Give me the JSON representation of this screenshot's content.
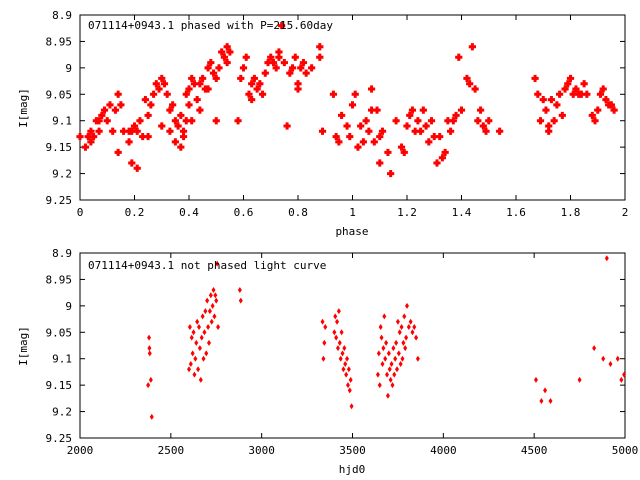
{
  "chart_data": [
    {
      "type": "scatter",
      "title": "071114+0943.1 phased with P=215.60day",
      "xlabel": "phase",
      "ylabel": "I[mag]",
      "xlim": [
        0,
        2
      ],
      "ylim": [
        8.9,
        9.25
      ],
      "y_inverted": true,
      "grid": false,
      "marker": "filled-cross",
      "color": "#ff0000",
      "xticks": [
        0,
        0.2,
        0.4,
        0.6,
        0.8,
        1,
        1.2,
        1.4,
        1.6,
        1.8,
        2
      ],
      "xtick_labels": [
        "0",
        "0.2",
        "0.4",
        "0.6",
        "0.8",
        "1",
        "1.2",
        "1.4",
        "1.6",
        "1.8",
        "2"
      ],
      "yticks": [
        8.9,
        8.95,
        9,
        9.05,
        9.1,
        9.15,
        9.2,
        9.25
      ],
      "ytick_labels": [
        "8.9",
        "8.95",
        "9",
        "9.05",
        "9.1",
        "9.15",
        "9.2",
        "9.25"
      ],
      "points": [
        [
          0.0,
          9.13
        ],
        [
          0.02,
          9.15
        ],
        [
          0.03,
          9.13
        ],
        [
          0.04,
          9.14
        ],
        [
          0.04,
          9.12
        ],
        [
          0.05,
          9.13
        ],
        [
          0.06,
          9.1
        ],
        [
          0.07,
          9.1
        ],
        [
          0.07,
          9.12
        ],
        [
          0.08,
          9.09
        ],
        [
          0.09,
          9.08
        ],
        [
          0.1,
          9.1
        ],
        [
          0.11,
          9.07
        ],
        [
          0.12,
          9.12
        ],
        [
          0.13,
          9.08
        ],
        [
          0.14,
          9.05
        ],
        [
          0.14,
          9.16
        ],
        [
          0.15,
          9.07
        ],
        [
          0.16,
          9.12
        ],
        [
          0.18,
          9.12
        ],
        [
          0.18,
          9.14
        ],
        [
          0.19,
          9.12
        ],
        [
          0.19,
          9.18
        ],
        [
          0.2,
          9.11
        ],
        [
          0.21,
          9.12
        ],
        [
          0.21,
          9.19
        ],
        [
          0.22,
          9.1
        ],
        [
          0.23,
          9.13
        ],
        [
          0.24,
          9.06
        ],
        [
          0.25,
          9.09
        ],
        [
          0.25,
          9.13
        ],
        [
          0.26,
          9.07
        ],
        [
          0.27,
          9.05
        ],
        [
          0.28,
          9.03
        ],
        [
          0.29,
          9.04
        ],
        [
          0.3,
          9.02
        ],
        [
          0.3,
          9.11
        ],
        [
          0.31,
          9.03
        ],
        [
          0.32,
          9.05
        ],
        [
          0.33,
          9.08
        ],
        [
          0.33,
          9.12
        ],
        [
          0.34,
          9.07
        ],
        [
          0.35,
          9.1
        ],
        [
          0.35,
          9.14
        ],
        [
          0.36,
          9.11
        ],
        [
          0.37,
          9.09
        ],
        [
          0.37,
          9.15
        ],
        [
          0.38,
          9.12
        ],
        [
          0.38,
          9.13
        ],
        [
          0.39,
          9.05
        ],
        [
          0.39,
          9.1
        ],
        [
          0.4,
          9.04
        ],
        [
          0.4,
          9.07
        ],
        [
          0.41,
          9.02
        ],
        [
          0.41,
          9.1
        ],
        [
          0.42,
          9.03
        ],
        [
          0.43,
          9.06
        ],
        [
          0.44,
          9.03
        ],
        [
          0.44,
          9.08
        ],
        [
          0.45,
          9.02
        ],
        [
          0.46,
          9.04
        ],
        [
          0.47,
          9.0
        ],
        [
          0.47,
          9.04
        ],
        [
          0.48,
          8.99
        ],
        [
          0.49,
          9.01
        ],
        [
          0.5,
          9.02
        ],
        [
          0.5,
          9.1
        ],
        [
          0.51,
          9.0
        ],
        [
          0.52,
          8.97
        ],
        [
          0.53,
          8.98
        ],
        [
          0.54,
          8.99
        ],
        [
          0.54,
          8.96
        ],
        [
          0.55,
          8.97
        ],
        [
          0.58,
          9.1
        ],
        [
          0.59,
          9.02
        ],
        [
          0.6,
          9.0
        ],
        [
          0.61,
          8.98
        ],
        [
          0.62,
          9.05
        ],
        [
          0.63,
          9.03
        ],
        [
          0.63,
          9.06
        ],
        [
          0.64,
          9.02
        ],
        [
          0.65,
          9.04
        ],
        [
          0.66,
          9.03
        ],
        [
          0.67,
          9.05
        ],
        [
          0.68,
          9.01
        ],
        [
          0.69,
          8.99
        ],
        [
          0.7,
          8.98
        ],
        [
          0.71,
          8.99
        ],
        [
          0.72,
          9.0
        ],
        [
          0.73,
          8.97
        ],
        [
          0.73,
          8.98
        ],
        [
          0.74,
          8.92
        ],
        [
          0.75,
          8.99
        ],
        [
          0.76,
          9.11
        ],
        [
          0.77,
          9.01
        ],
        [
          0.78,
          9.0
        ],
        [
          0.79,
          8.98
        ],
        [
          0.8,
          9.03
        ],
        [
          0.8,
          9.04
        ],
        [
          0.81,
          9.0
        ],
        [
          0.82,
          8.99
        ],
        [
          0.83,
          9.01
        ],
        [
          0.85,
          9.0
        ],
        [
          0.88,
          8.96
        ],
        [
          0.88,
          8.98
        ],
        [
          0.89,
          9.12
        ],
        [
          0.93,
          9.05
        ],
        [
          0.94,
          9.13
        ],
        [
          0.95,
          9.14
        ],
        [
          0.96,
          9.09
        ],
        [
          0.98,
          9.11
        ],
        [
          0.99,
          9.13
        ],
        [
          1.0,
          9.07
        ],
        [
          1.01,
          9.05
        ],
        [
          1.02,
          9.15
        ],
        [
          1.03,
          9.11
        ],
        [
          1.04,
          9.14
        ],
        [
          1.05,
          9.1
        ],
        [
          1.06,
          9.12
        ],
        [
          1.07,
          9.04
        ],
        [
          1.07,
          9.08
        ],
        [
          1.08,
          9.14
        ],
        [
          1.09,
          9.08
        ],
        [
          1.1,
          9.13
        ],
        [
          1.1,
          9.18
        ],
        [
          1.11,
          9.12
        ],
        [
          1.13,
          9.16
        ],
        [
          1.14,
          9.2
        ],
        [
          1.16,
          9.1
        ],
        [
          1.18,
          9.15
        ],
        [
          1.19,
          9.16
        ],
        [
          1.2,
          9.11
        ],
        [
          1.21,
          9.09
        ],
        [
          1.22,
          9.08
        ],
        [
          1.23,
          9.12
        ],
        [
          1.24,
          9.1
        ],
        [
          1.25,
          9.12
        ],
        [
          1.26,
          9.08
        ],
        [
          1.27,
          9.11
        ],
        [
          1.28,
          9.14
        ],
        [
          1.29,
          9.1
        ],
        [
          1.3,
          9.13
        ],
        [
          1.31,
          9.18
        ],
        [
          1.32,
          9.13
        ],
        [
          1.33,
          9.17
        ],
        [
          1.34,
          9.16
        ],
        [
          1.35,
          9.1
        ],
        [
          1.36,
          9.12
        ],
        [
          1.37,
          9.1
        ],
        [
          1.38,
          9.09
        ],
        [
          1.39,
          8.98
        ],
        [
          1.4,
          9.08
        ],
        [
          1.42,
          9.02
        ],
        [
          1.43,
          9.03
        ],
        [
          1.44,
          8.96
        ],
        [
          1.45,
          9.04
        ],
        [
          1.46,
          9.1
        ],
        [
          1.47,
          9.08
        ],
        [
          1.48,
          9.11
        ],
        [
          1.49,
          9.12
        ],
        [
          1.5,
          9.1
        ],
        [
          1.54,
          9.12
        ],
        [
          1.67,
          9.02
        ],
        [
          1.68,
          9.05
        ],
        [
          1.69,
          9.1
        ],
        [
          1.7,
          9.06
        ],
        [
          1.71,
          9.08
        ],
        [
          1.72,
          9.11
        ],
        [
          1.72,
          9.12
        ],
        [
          1.73,
          9.06
        ],
        [
          1.74,
          9.1
        ],
        [
          1.75,
          9.07
        ],
        [
          1.76,
          9.05
        ],
        [
          1.77,
          9.09
        ],
        [
          1.78,
          9.04
        ],
        [
          1.79,
          9.03
        ],
        [
          1.8,
          9.02
        ],
        [
          1.81,
          9.05
        ],
        [
          1.82,
          9.04
        ],
        [
          1.83,
          9.05
        ],
        [
          1.84,
          9.05
        ],
        [
          1.85,
          9.03
        ],
        [
          1.86,
          9.05
        ],
        [
          1.88,
          9.09
        ],
        [
          1.89,
          9.1
        ],
        [
          1.9,
          9.08
        ],
        [
          1.91,
          9.05
        ],
        [
          1.92,
          9.04
        ],
        [
          1.93,
          9.06
        ],
        [
          1.94,
          9.07
        ],
        [
          1.95,
          9.07
        ],
        [
          1.96,
          9.08
        ]
      ]
    },
    {
      "type": "scatter",
      "title": "071114+0943.1 not phased light curve",
      "xlabel": "hjd0",
      "ylabel": "I[mag]",
      "xlim": [
        2000,
        5000
      ],
      "ylim": [
        8.9,
        9.25
      ],
      "y_inverted": true,
      "grid": false,
      "marker": "diamond",
      "color": "#ff0000",
      "xticks": [
        2000,
        2500,
        3000,
        3500,
        4000,
        4500,
        5000
      ],
      "xtick_labels": [
        "2000",
        "2500",
        "3000",
        "3500",
        "4000",
        "4500",
        "5000"
      ],
      "yticks": [
        8.9,
        8.95,
        9,
        9.05,
        9.1,
        9.15,
        9.2,
        9.25
      ],
      "ytick_labels": [
        "8.9",
        "8.95",
        "9",
        "9.05",
        "9.1",
        "9.15",
        "9.2",
        "9.25"
      ],
      "points": [
        [
          2375,
          9.15
        ],
        [
          2380,
          9.06
        ],
        [
          2382,
          9.08
        ],
        [
          2384,
          9.09
        ],
        [
          2390,
          9.14
        ],
        [
          2395,
          9.21
        ],
        [
          2600,
          9.12
        ],
        [
          2605,
          9.04
        ],
        [
          2610,
          9.11
        ],
        [
          2615,
          9.06
        ],
        [
          2620,
          9.09
        ],
        [
          2625,
          9.05
        ],
        [
          2630,
          9.13
        ],
        [
          2635,
          9.1
        ],
        [
          2640,
          9.07
        ],
        [
          2645,
          9.03
        ],
        [
          2650,
          9.12
        ],
        [
          2655,
          9.04
        ],
        [
          2660,
          9.08
        ],
        [
          2665,
          9.14
        ],
        [
          2670,
          9.06
        ],
        [
          2675,
          9.02
        ],
        [
          2680,
          9.1
        ],
        [
          2685,
          9.05
        ],
        [
          2690,
          9.01
        ],
        [
          2695,
          9.09
        ],
        [
          2700,
          8.99
        ],
        [
          2705,
          9.04
        ],
        [
          2710,
          9.07
        ],
        [
          2715,
          9.01
        ],
        [
          2720,
          8.98
        ],
        [
          2725,
          9.03
        ],
        [
          2730,
          9.0
        ],
        [
          2735,
          8.97
        ],
        [
          2740,
          9.02
        ],
        [
          2745,
          8.98
        ],
        [
          2750,
          8.99
        ],
        [
          2755,
          8.92
        ],
        [
          2760,
          9.04
        ],
        [
          2880,
          8.97
        ],
        [
          2885,
          8.99
        ],
        [
          3335,
          9.03
        ],
        [
          3340,
          9.1
        ],
        [
          3345,
          9.07
        ],
        [
          3350,
          9.04
        ],
        [
          3400,
          9.05
        ],
        [
          3405,
          9.02
        ],
        [
          3410,
          9.06
        ],
        [
          3415,
          9.03
        ],
        [
          3420,
          9.08
        ],
        [
          3425,
          9.01
        ],
        [
          3430,
          9.07
        ],
        [
          3435,
          9.1
        ],
        [
          3440,
          9.05
        ],
        [
          3445,
          9.09
        ],
        [
          3450,
          9.12
        ],
        [
          3455,
          9.08
        ],
        [
          3460,
          9.11
        ],
        [
          3465,
          9.13
        ],
        [
          3470,
          9.1
        ],
        [
          3475,
          9.15
        ],
        [
          3480,
          9.12
        ],
        [
          3485,
          9.16
        ],
        [
          3490,
          9.14
        ],
        [
          3495,
          9.19
        ],
        [
          3640,
          9.13
        ],
        [
          3645,
          9.09
        ],
        [
          3650,
          9.15
        ],
        [
          3655,
          9.04
        ],
        [
          3660,
          9.06
        ],
        [
          3665,
          9.11
        ],
        [
          3670,
          9.08
        ],
        [
          3675,
          9.02
        ],
        [
          3680,
          9.1
        ],
        [
          3685,
          9.07
        ],
        [
          3690,
          9.13
        ],
        [
          3695,
          9.17
        ],
        [
          3700,
          9.09
        ],
        [
          3705,
          9.12
        ],
        [
          3710,
          9.14
        ],
        [
          3715,
          9.11
        ],
        [
          3720,
          9.15
        ],
        [
          3725,
          9.08
        ],
        [
          3730,
          9.13
        ],
        [
          3735,
          9.1
        ],
        [
          3740,
          9.07
        ],
        [
          3745,
          9.12
        ],
        [
          3750,
          9.03
        ],
        [
          3755,
          9.09
        ],
        [
          3760,
          9.05
        ],
        [
          3765,
          9.11
        ],
        [
          3770,
          9.04
        ],
        [
          3775,
          9.1
        ],
        [
          3780,
          9.07
        ],
        [
          3785,
          9.02
        ],
        [
          3790,
          9.08
        ],
        [
          3795,
          9.06
        ],
        [
          3800,
          9.0
        ],
        [
          3810,
          9.04
        ],
        [
          3820,
          9.03
        ],
        [
          3830,
          9.05
        ],
        [
          3840,
          9.04
        ],
        [
          3850,
          9.06
        ],
        [
          3860,
          9.1
        ],
        [
          4510,
          9.14
        ],
        [
          4540,
          9.18
        ],
        [
          4560,
          9.16
        ],
        [
          4590,
          9.18
        ],
        [
          4750,
          9.14
        ],
        [
          4830,
          9.08
        ],
        [
          4880,
          9.1
        ],
        [
          4900,
          8.91
        ],
        [
          4920,
          9.11
        ],
        [
          4960,
          9.1
        ],
        [
          4980,
          9.14
        ],
        [
          4995,
          9.13
        ]
      ]
    }
  ]
}
